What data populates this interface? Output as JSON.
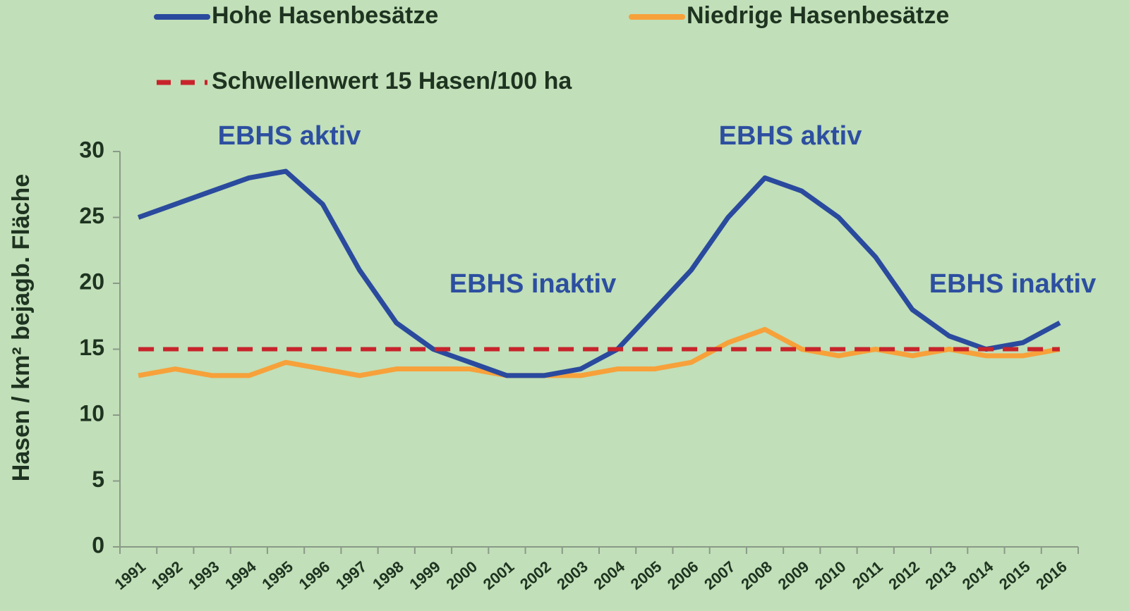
{
  "chart_data": {
    "type": "line",
    "y_label": "Hasen / km² bejagb. Fläche",
    "categories": [
      "1991",
      "1992",
      "1993",
      "1994",
      "1995",
      "1996",
      "1997",
      "1998",
      "1999",
      "2000",
      "2001",
      "2002",
      "2003",
      "2004",
      "2005",
      "2006",
      "2007",
      "2008",
      "2009",
      "2010",
      "2011",
      "2012",
      "2013",
      "2014",
      "2015",
      "2016"
    ],
    "series": [
      {
        "name": "Hohe Hasenbesätze",
        "color": "#2a4a9e",
        "dash": false,
        "values": [
          25,
          26,
          27,
          28,
          28.5,
          26,
          21,
          17,
          15,
          14,
          13,
          13,
          13.5,
          15,
          18,
          21,
          25,
          28,
          27,
          25,
          22,
          18,
          16,
          15,
          15.5,
          17
        ]
      },
      {
        "name": "Niedrige Hasenbesätze",
        "color": "#f7a13a",
        "dash": false,
        "values": [
          13,
          13.5,
          13,
          13,
          14,
          13.5,
          13,
          13.5,
          13.5,
          13.5,
          13,
          13,
          13,
          13.5,
          13.5,
          14,
          15.5,
          16.5,
          15,
          14.5,
          15,
          14.5,
          15,
          14.5,
          14.5,
          15
        ]
      },
      {
        "name": "Schwellenwert 15 Hasen/100 ha",
        "color": "#c8232b",
        "dash": true,
        "values": [
          15,
          15,
          15,
          15,
          15,
          15,
          15,
          15,
          15,
          15,
          15,
          15,
          15,
          15,
          15,
          15,
          15,
          15,
          15,
          15,
          15,
          15,
          15,
          15,
          15,
          15
        ]
      }
    ],
    "annotations": [
      "EBHS aktiv",
      "EBHS inaktiv",
      "EBHS aktiv",
      "EBHS inaktiv"
    ],
    "ylim": [
      0,
      30
    ],
    "yticks": [
      0,
      5,
      10,
      15,
      20,
      25,
      30
    ]
  }
}
